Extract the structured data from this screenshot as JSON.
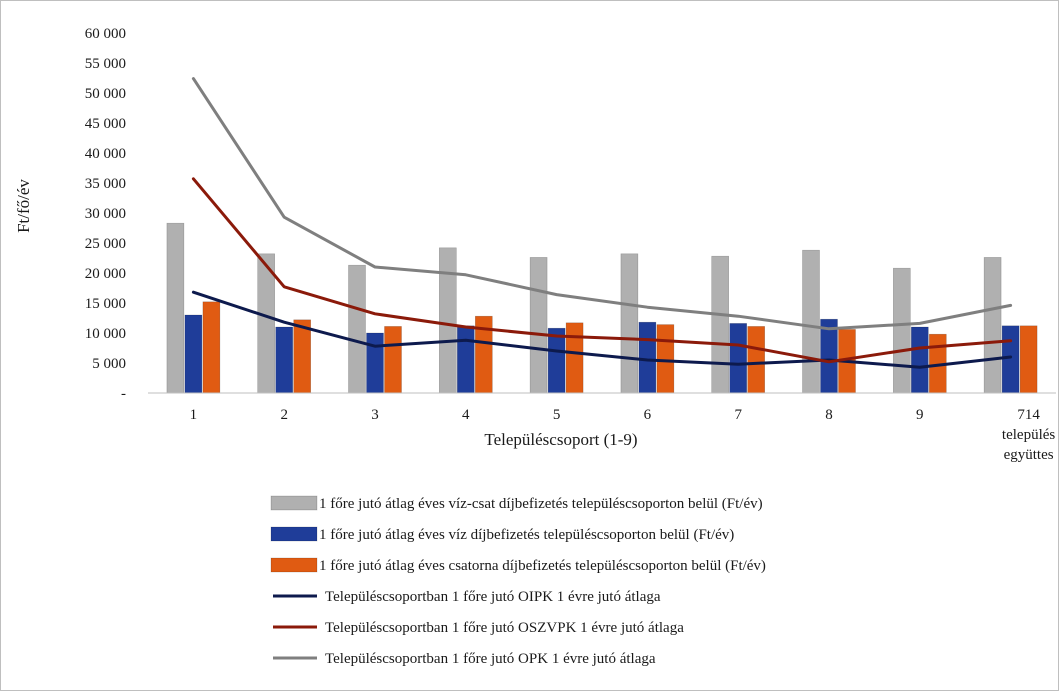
{
  "chart_data": {
    "type": "bar",
    "title": "",
    "xlabel": "Településcsoport (1-9)",
    "ylabel": "Ft/fő/év",
    "ylim": [
      0,
      60000
    ],
    "yticks": [
      {
        "value": 0,
        "label": "-"
      },
      {
        "value": 5000,
        "label": "5 000"
      },
      {
        "value": 10000,
        "label": "10 000"
      },
      {
        "value": 15000,
        "label": "15 000"
      },
      {
        "value": 20000,
        "label": "20 000"
      },
      {
        "value": 25000,
        "label": "25 000"
      },
      {
        "value": 30000,
        "label": "30 000"
      },
      {
        "value": 35000,
        "label": "35 000"
      },
      {
        "value": 40000,
        "label": "40 000"
      },
      {
        "value": 45000,
        "label": "45 000"
      },
      {
        "value": 50000,
        "label": "50 000"
      },
      {
        "value": 55000,
        "label": "55 000"
      },
      {
        "value": 60000,
        "label": "60 000"
      }
    ],
    "categories": [
      [
        "1"
      ],
      [
        "2"
      ],
      [
        "3"
      ],
      [
        "4"
      ],
      [
        "5"
      ],
      [
        "6"
      ],
      [
        "7"
      ],
      [
        "8"
      ],
      [
        "9"
      ],
      [
        "714",
        "település",
        "együttes"
      ]
    ],
    "bar_series": [
      {
        "name": "1 főre jutó átlag éves víz-csat díjbefizetés településcsoporton belül (Ft/év)",
        "color": "#b0b0b0",
        "values": [
          28300,
          23200,
          21300,
          24200,
          22600,
          23200,
          22800,
          23800,
          20800,
          22600
        ]
      },
      {
        "name": "1 főre jutó átlag éves víz díjbefizetés településcsoporton belül (Ft/év)",
        "color": "#1f3d99",
        "values": [
          13000,
          11000,
          10000,
          11200,
          10800,
          11800,
          11600,
          12300,
          11000,
          11200
        ]
      },
      {
        "name": "1 főre jutó átlag éves csatorna díjbefizetés településcsoporton belül (Ft/év)",
        "color": "#e05b12",
        "values": [
          15200,
          12200,
          11100,
          12800,
          11700,
          11400,
          11100,
          10600,
          9800,
          11200
        ]
      }
    ],
    "line_series": [
      {
        "name": "Településcsoportban 1 főre jutó OIPK 1 évre jutó átlaga",
        "color": "#0d1a4d",
        "values": [
          16800,
          11800,
          7800,
          8800,
          7000,
          5500,
          4800,
          5500,
          4300,
          6000
        ]
      },
      {
        "name": "Településcsoportban 1 főre jutó OSZVPK 1 évre jutó átlaga",
        "color": "#8b1a0a",
        "values": [
          35700,
          17700,
          13200,
          11000,
          9500,
          8900,
          8000,
          5200,
          7500,
          8700
        ]
      },
      {
        "name": "Településcsoportban 1 főre jutó OPK 1 évre jutó átlaga",
        "color": "#7f7f7f",
        "values": [
          52400,
          29300,
          21000,
          19700,
          16400,
          14300,
          12800,
          10700,
          11600,
          14600
        ]
      }
    ],
    "legend_placement": "bottom",
    "grid": false
  }
}
